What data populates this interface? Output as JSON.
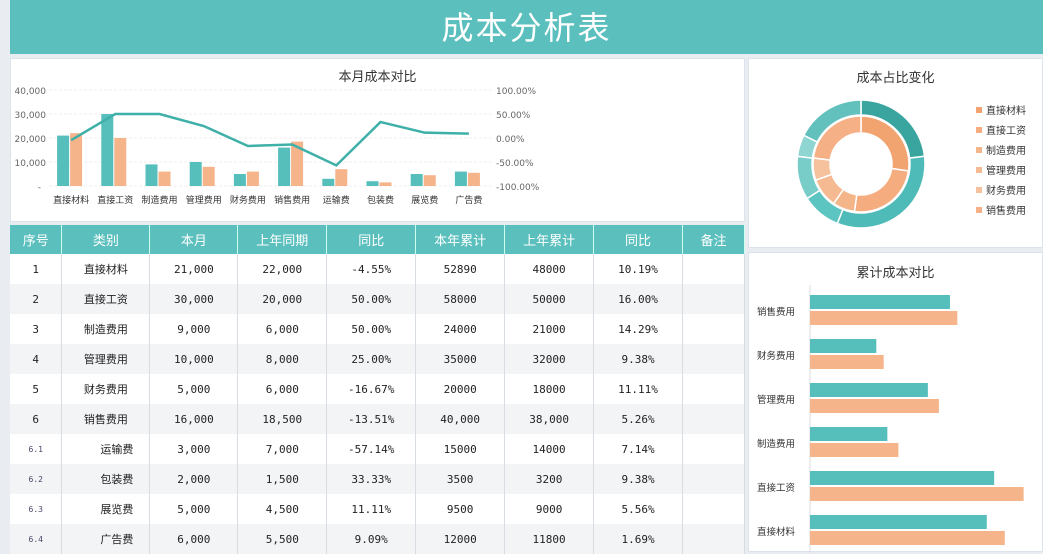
{
  "title": "成本分析表",
  "colors": {
    "teal": "#56bfbc",
    "orange": "#f5b48a",
    "line": "#3fb0a8"
  },
  "chart_data": [
    {
      "type": "bar+line",
      "title": "本月成本对比",
      "categories": [
        "直接材料",
        "直接工资",
        "制造费用",
        "管理费用",
        "财务费用",
        "销售费用",
        "运输费",
        "包装费",
        "展览费",
        "广告费"
      ],
      "series": [
        {
          "values": [
            21000,
            30000,
            9000,
            10000,
            5000,
            16000,
            3000,
            2000,
            5000,
            6000
          ],
          "axis": "left",
          "kind": "bar"
        },
        {
          "values": [
            22000,
            20000,
            6000,
            8000,
            6000,
            18500,
            7000,
            1500,
            4500,
            5500
          ],
          "axis": "left",
          "kind": "bar"
        },
        {
          "values": [
            -4.55,
            50,
            50,
            25,
            -16.67,
            -13.51,
            -57.14,
            33.33,
            11.11,
            9.09
          ],
          "axis": "right",
          "kind": "line"
        }
      ],
      "ylim": [
        0,
        40000
      ],
      "yticks": [
        "-",
        "10,000",
        "20,000",
        "30,000",
        "40,000"
      ],
      "y2lim": [
        -100,
        100
      ],
      "y2ticks": [
        "-100.00%",
        "-50.00%",
        "0.00%",
        "50.00%",
        "100.00%"
      ]
    },
    {
      "type": "donut",
      "title": "成本占比变化",
      "categories": [
        "直接材料",
        "直接工资",
        "制造费用",
        "管理费用",
        "财务费用",
        "销售费用"
      ],
      "outer": [
        21000,
        30000,
        9000,
        10000,
        5000,
        16000
      ],
      "inner": [
        22000,
        20000,
        6000,
        8000,
        6000,
        18500
      ],
      "legend": "right"
    },
    {
      "type": "bar",
      "orientation": "horizontal",
      "title": "累计成本对比",
      "categories": [
        "销售费用",
        "财务费用",
        "管理费用",
        "制造费用",
        "直接工资",
        "直接材料"
      ],
      "series": [
        {
          "values": [
            38000,
            18000,
            32000,
            21000,
            50000,
            48000
          ]
        },
        {
          "values": [
            40000,
            20000,
            35000,
            24000,
            58000,
            52890
          ]
        }
      ],
      "xlim": [
        0,
        60000
      ]
    }
  ],
  "table": {
    "headers": [
      "序号",
      "类别",
      "本月",
      "上年同期",
      "同比",
      "本年累计",
      "上年累计",
      "同比",
      "备注"
    ],
    "rows": [
      [
        "1",
        "直接材料",
        "21,000",
        "22,000",
        "-4.55%",
        "52890",
        "48000",
        "10.19%",
        ""
      ],
      [
        "2",
        "直接工资",
        "30,000",
        "20,000",
        "50.00%",
        "58000",
        "50000",
        "16.00%",
        ""
      ],
      [
        "3",
        "制造费用",
        "9,000",
        "6,000",
        "50.00%",
        "24000",
        "21000",
        "14.29%",
        ""
      ],
      [
        "4",
        "管理费用",
        "10,000",
        "8,000",
        "25.00%",
        "35000",
        "32000",
        "9.38%",
        ""
      ],
      [
        "5",
        "财务费用",
        "5,000",
        "6,000",
        "-16.67%",
        "20000",
        "18000",
        "11.11%",
        ""
      ],
      [
        "6",
        "销售费用",
        "16,000",
        "18,500",
        "-13.51%",
        "40,000",
        "38,000",
        "5.26%",
        ""
      ],
      [
        "6.1",
        "运输费",
        "3,000",
        "7,000",
        "-57.14%",
        "15000",
        "14000",
        "7.14%",
        ""
      ],
      [
        "6.2",
        "包装费",
        "2,000",
        "1,500",
        "33.33%",
        "3500",
        "3200",
        "9.38%",
        ""
      ],
      [
        "6.3",
        "展览费",
        "5,000",
        "4,500",
        "11.11%",
        "9500",
        "9000",
        "5.56%",
        ""
      ],
      [
        "6.4",
        "广告费",
        "6,000",
        "5,500",
        "9.09%",
        "12000",
        "11800",
        "1.69%",
        ""
      ]
    ]
  }
}
